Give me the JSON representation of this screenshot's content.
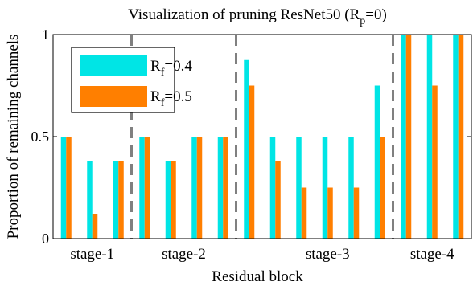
{
  "chart_data": {
    "type": "bar",
    "title_main": "Visualization of pruning ResNet50 (R",
    "title_sub": "p",
    "title_tail": "=0)",
    "xlabel": "Residual block",
    "ylabel": "Proportion of remaining channels",
    "ylim": [
      0,
      1
    ],
    "yticks": [
      "0",
      "0.5",
      "1"
    ],
    "xlim": [
      0.5,
      16.5
    ],
    "stage_labels": [
      {
        "text": "stage-1",
        "center": 2
      },
      {
        "text": "stage-2",
        "center": 5.5
      },
      {
        "text": "stage-3",
        "center": 11
      },
      {
        "text": "stage-4",
        "center": 15
      }
    ],
    "stage_separators": [
      3.5,
      7.5,
      13.5
    ],
    "x": [
      1,
      2,
      3,
      4,
      5,
      6,
      7,
      8,
      9,
      10,
      11,
      12,
      13,
      14,
      15,
      16
    ],
    "series": [
      {
        "main": "R",
        "sub": "f",
        "tail": "=0.4",
        "color": "#00E5E5",
        "values": [
          0.5,
          0.38,
          0.38,
          0.5,
          0.38,
          0.5,
          0.5,
          0.875,
          0.5,
          0.5,
          0.5,
          0.5,
          0.75,
          1.0,
          1.0,
          1.0
        ]
      },
      {
        "main": "R",
        "sub": "f",
        "tail": "=0.5",
        "color": "#FF7F00",
        "values": [
          0.5,
          0.12,
          0.38,
          0.5,
          0.38,
          0.5,
          0.5,
          0.75,
          0.38,
          0.25,
          0.25,
          0.25,
          0.5,
          1.0,
          0.75,
          1.0
        ]
      }
    ],
    "legend_position": "top-left",
    "grid": false
  }
}
